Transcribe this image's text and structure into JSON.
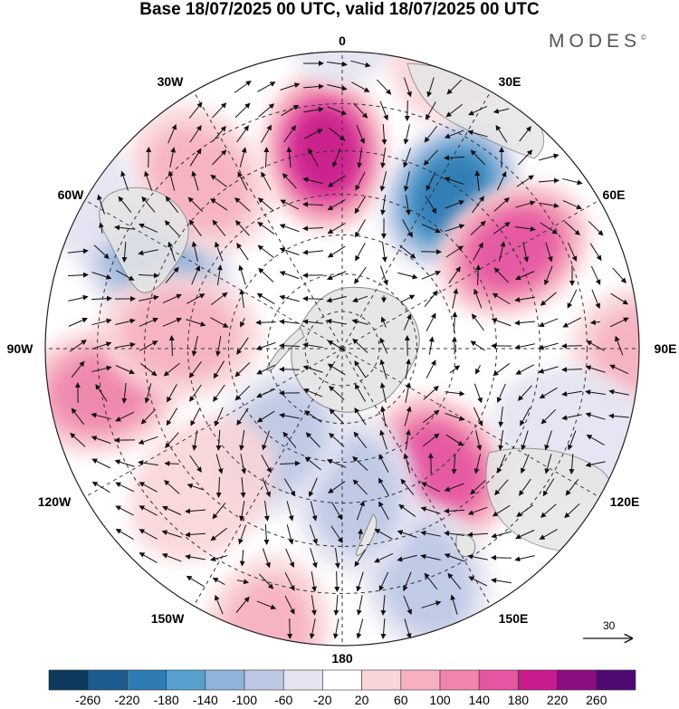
{
  "title": "Base 18/07/2025 00 UTC, valid 18/07/2025 00 UTC",
  "brand": "MODES",
  "brand_mark": "©",
  "projection": "south polar stereographic",
  "longitude_labels": {
    "lon_0": "0",
    "lon_30e": "30E",
    "lon_60e": "60E",
    "lon_90e": "90E",
    "lon_120e": "120E",
    "lon_150e": "150E",
    "lon_180": "180",
    "lon_150w": "150W",
    "lon_120w": "120W",
    "lon_90w": "90W",
    "lon_60w": "60W",
    "lon_30w": "30W"
  },
  "vector_reference": {
    "label": "30"
  },
  "colorbar": {
    "colors": [
      "#0d3a5c",
      "#1a5c8e",
      "#2f7cb5",
      "#579fcc",
      "#8fb3d9",
      "#bcc8e4",
      "#e3e3f2",
      "#ffffff",
      "#f9d5d8",
      "#f6b0bf",
      "#ef85ad",
      "#e555a2",
      "#c91c8c",
      "#8c0c82",
      "#4f0a72"
    ],
    "ticks": [
      "-260",
      "-220",
      "-180",
      "-140",
      "-100",
      "-60",
      "-20",
      "20",
      "60",
      "100",
      "140",
      "180",
      "220",
      "260"
    ]
  },
  "anomalies": [
    {
      "lon": -5,
      "colat": 50,
      "value": 200
    },
    {
      "lon": 35,
      "colat": 48,
      "value": -200
    },
    {
      "lon": 60,
      "colat": 50,
      "value": 150
    },
    {
      "lon": -65,
      "colat": 52,
      "value": -120
    },
    {
      "lon": -40,
      "colat": 55,
      "value": 60
    },
    {
      "lon": 90,
      "colat": 72,
      "value": 80
    },
    {
      "lon": -100,
      "colat": 60,
      "value": 100
    },
    {
      "lon": -85,
      "colat": 42,
      "value": 60
    },
    {
      "lon": 140,
      "colat": 40,
      "value": 140
    },
    {
      "lon": 160,
      "colat": 60,
      "value": -60
    },
    {
      "lon": -165,
      "colat": 70,
      "value": 60
    },
    {
      "lon": 175,
      "colat": 38,
      "value": -60
    },
    {
      "lon": -145,
      "colat": 30,
      "value": -60
    },
    {
      "lon": -135,
      "colat": 50,
      "value": 40
    },
    {
      "lon": 110,
      "colat": 60,
      "value": -40
    },
    {
      "lon": 0,
      "colat": 78,
      "value": -30
    },
    {
      "lon": -60,
      "colat": 75,
      "value": -20
    },
    {
      "lon": 20,
      "colat": 75,
      "value": 40
    }
  ]
}
